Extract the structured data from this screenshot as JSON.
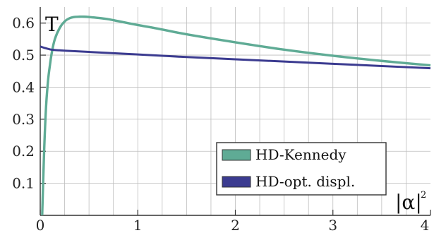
{
  "chart_data": {
    "type": "line",
    "xlabel": "|α|",
    "xlabel_superscript": "2",
    "ylabel": "T",
    "xlim": [
      0,
      4
    ],
    "ylim": [
      0,
      0.65
    ],
    "x_ticks": [
      0,
      1,
      2,
      3,
      4
    ],
    "y_ticks": [
      0.1,
      0.2,
      0.3,
      0.4,
      0.5,
      0.6
    ],
    "x_tick_labels": [
      "0",
      "1",
      "2",
      "3",
      "4"
    ],
    "y_tick_labels": [
      "0.1",
      "0.2",
      "0.3",
      "0.4",
      "0.5",
      "0.6"
    ],
    "grid": true,
    "legend_position": "bottom-right",
    "series": [
      {
        "name": "HD-Kennedy",
        "color": "#5fab95",
        "x": [
          0.02,
          0.04,
          0.06,
          0.08,
          0.1,
          0.12,
          0.15,
          0.2,
          0.25,
          0.3,
          0.35,
          0.4,
          0.45,
          0.5,
          0.6,
          0.7,
          0.8,
          1.0,
          1.2,
          1.5,
          2.0,
          2.5,
          3.0,
          3.5,
          4.0
        ],
        "y": [
          0.0,
          0.2,
          0.34,
          0.42,
          0.47,
          0.51,
          0.55,
          0.585,
          0.605,
          0.615,
          0.619,
          0.62,
          0.62,
          0.619,
          0.616,
          0.612,
          0.606,
          0.594,
          0.583,
          0.565,
          0.54,
          0.517,
          0.498,
          0.482,
          0.468
        ]
      },
      {
        "name": "HD-opt. displ.",
        "color": "#3b3b90",
        "x": [
          0.0,
          0.05,
          0.1,
          0.15,
          0.2,
          0.3,
          0.5,
          0.75,
          1.0,
          1.5,
          2.0,
          2.5,
          3.0,
          3.5,
          4.0
        ],
        "y": [
          0.527,
          0.522,
          0.518,
          0.516,
          0.515,
          0.513,
          0.51,
          0.506,
          0.502,
          0.494,
          0.487,
          0.48,
          0.473,
          0.466,
          0.459
        ]
      }
    ]
  }
}
